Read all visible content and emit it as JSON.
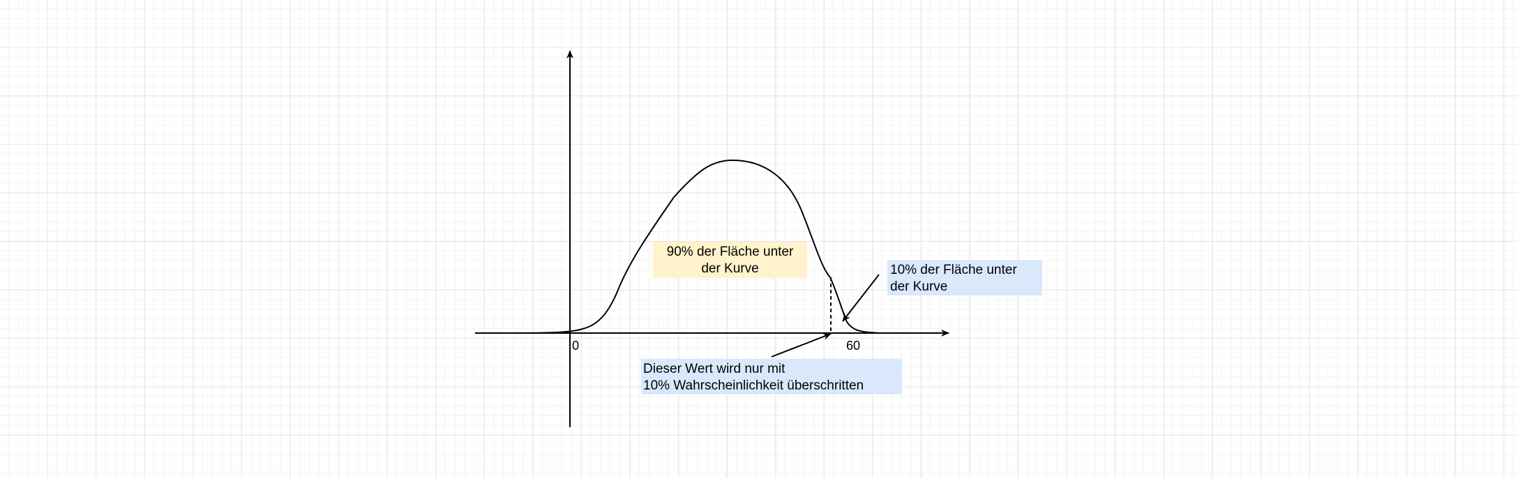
{
  "colors": {
    "grid": "#e6e6e6",
    "stroke": "#000000",
    "highlight_orange": "#fff2cc",
    "highlight_blue": "#dae8fc"
  },
  "axes": {
    "x_tick_0": "0",
    "x_tick_60": "60"
  },
  "labels": {
    "area_90": "90% der Fläche unter\nder Kurve",
    "area_10": "10% der Fläche unter\nder Kurve",
    "threshold": "Dieser Wert wird nur mit\n10% Wahrscheinlichkeit überschritten"
  }
}
